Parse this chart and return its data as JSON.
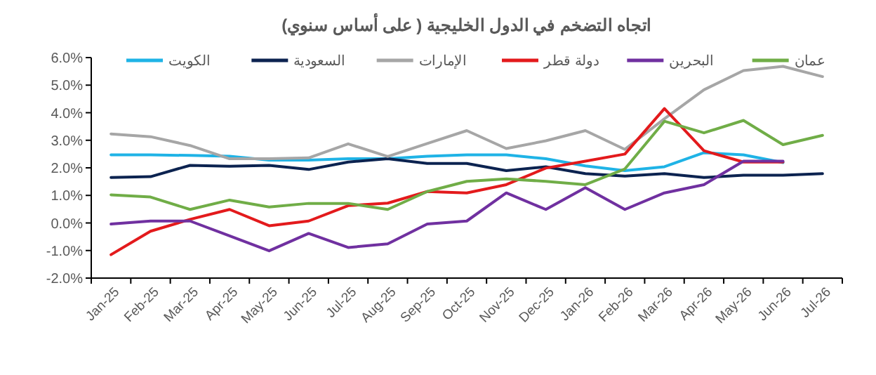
{
  "chart_data": {
    "type": "line",
    "title": "اتجاه التضخم في الدول الخليجية ( على أساس سنوي)",
    "categories": [
      "Jan-25",
      "Feb-25",
      "Mar-25",
      "Apr-25",
      "May-25",
      "Jun-25",
      "Jul-25",
      "Aug-25",
      "Sep-25",
      "Oct-25",
      "Nov-25",
      "Dec-25",
      "Jan-26",
      "Feb-26",
      "Mar-26",
      "Apr-26",
      "May-26",
      "Jun-26",
      "Jul-26"
    ],
    "ylim": [
      -2,
      6
    ],
    "yticks": [
      {
        "value": -2,
        "label": "-2.0%"
      },
      {
        "value": -1,
        "label": "-1.0%"
      },
      {
        "value": 0,
        "label": "0.0%"
      },
      {
        "value": 1,
        "label": "1.0%"
      },
      {
        "value": 2,
        "label": "2.0%"
      },
      {
        "value": 3,
        "label": "3.0%"
      },
      {
        "value": 4,
        "label": "4.0%"
      },
      {
        "value": 5,
        "label": "5.0%"
      },
      {
        "value": 6,
        "label": "6.0%"
      }
    ],
    "grid": false,
    "legend": "top",
    "marker": "none",
    "line_style": "solid",
    "series": [
      {
        "name": "الكويت",
        "color": "#1fb3e6",
        "values": [
          2.47,
          2.47,
          2.45,
          2.42,
          2.28,
          2.28,
          2.33,
          2.33,
          2.42,
          2.47,
          2.47,
          2.33,
          2.07,
          1.9,
          2.04,
          2.55,
          2.47,
          2.19,
          null
        ]
      },
      {
        "name": "السعودية",
        "color": "#0c2350",
        "values": [
          1.65,
          1.68,
          2.09,
          2.06,
          2.09,
          1.94,
          2.21,
          2.33,
          2.16,
          2.16,
          1.9,
          2.04,
          1.79,
          1.7,
          1.79,
          1.65,
          1.73,
          1.73,
          1.79
        ]
      },
      {
        "name": "الإمارات",
        "color": "#a6a6a6",
        "values": [
          3.23,
          3.13,
          2.81,
          2.33,
          2.33,
          2.36,
          2.87,
          2.41,
          2.88,
          3.35,
          2.7,
          2.98,
          3.35,
          2.67,
          3.78,
          4.83,
          5.53,
          5.68,
          5.31
        ]
      },
      {
        "name": "دولة قطر",
        "color": "#e31a1c",
        "values": [
          -1.15,
          -0.3,
          0.13,
          0.49,
          -0.1,
          0.07,
          0.63,
          0.72,
          1.14,
          1.09,
          1.39,
          1.99,
          2.24,
          2.5,
          4.15,
          2.62,
          2.21,
          2.21,
          null
        ]
      },
      {
        "name": "البحرين",
        "color": "#7030a0",
        "values": [
          -0.04,
          0.07,
          0.07,
          -0.47,
          -1.01,
          -0.38,
          -0.89,
          -0.76,
          -0.04,
          0.07,
          1.09,
          0.49,
          1.28,
          0.49,
          1.09,
          1.39,
          2.24,
          2.24,
          null
        ]
      },
      {
        "name": "عمان",
        "color": "#70ad47",
        "values": [
          1.02,
          0.94,
          0.49,
          0.83,
          0.58,
          0.71,
          0.71,
          0.49,
          1.14,
          1.51,
          1.6,
          1.51,
          1.39,
          1.96,
          3.69,
          3.27,
          3.72,
          2.84,
          3.18
        ]
      }
    ]
  }
}
